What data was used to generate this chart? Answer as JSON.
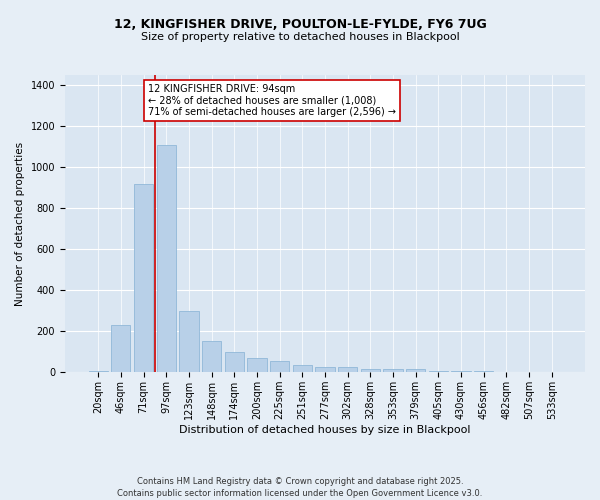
{
  "title_line1": "12, KINGFISHER DRIVE, POULTON-LE-FYLDE, FY6 7UG",
  "title_line2": "Size of property relative to detached houses in Blackpool",
  "xlabel": "Distribution of detached houses by size in Blackpool",
  "ylabel": "Number of detached properties",
  "categories": [
    "20sqm",
    "46sqm",
    "71sqm",
    "97sqm",
    "123sqm",
    "148sqm",
    "174sqm",
    "200sqm",
    "225sqm",
    "251sqm",
    "277sqm",
    "302sqm",
    "328sqm",
    "353sqm",
    "379sqm",
    "405sqm",
    "430sqm",
    "456sqm",
    "482sqm",
    "507sqm",
    "533sqm"
  ],
  "values": [
    8,
    230,
    920,
    1110,
    300,
    155,
    100,
    70,
    55,
    35,
    25,
    25,
    15,
    15,
    15,
    5,
    5,
    5,
    3,
    2,
    3
  ],
  "bar_color": "#b8d0e8",
  "bar_edge_color": "#90b8d8",
  "vline_x_index": 2.5,
  "vline_color": "#cc0000",
  "annotation_text": "12 KINGFISHER DRIVE: 94sqm\n← 28% of detached houses are smaller (1,008)\n71% of semi-detached houses are larger (2,596) →",
  "annotation_box_color": "#ffffff",
  "annotation_box_edge": "#cc0000",
  "ylim": [
    0,
    1450
  ],
  "yticks": [
    0,
    200,
    400,
    600,
    800,
    1000,
    1200,
    1400
  ],
  "footnote": "Contains HM Land Registry data © Crown copyright and database right 2025.\nContains public sector information licensed under the Open Government Licence v3.0.",
  "bg_color": "#e6eef6",
  "plot_bg_color": "#dae6f2",
  "grid_color": "#ffffff",
  "title_fontsize": 9,
  "subtitle_fontsize": 8,
  "xlabel_fontsize": 8,
  "ylabel_fontsize": 7.5,
  "tick_fontsize": 7,
  "footnote_fontsize": 6,
  "annotation_fontsize": 7
}
